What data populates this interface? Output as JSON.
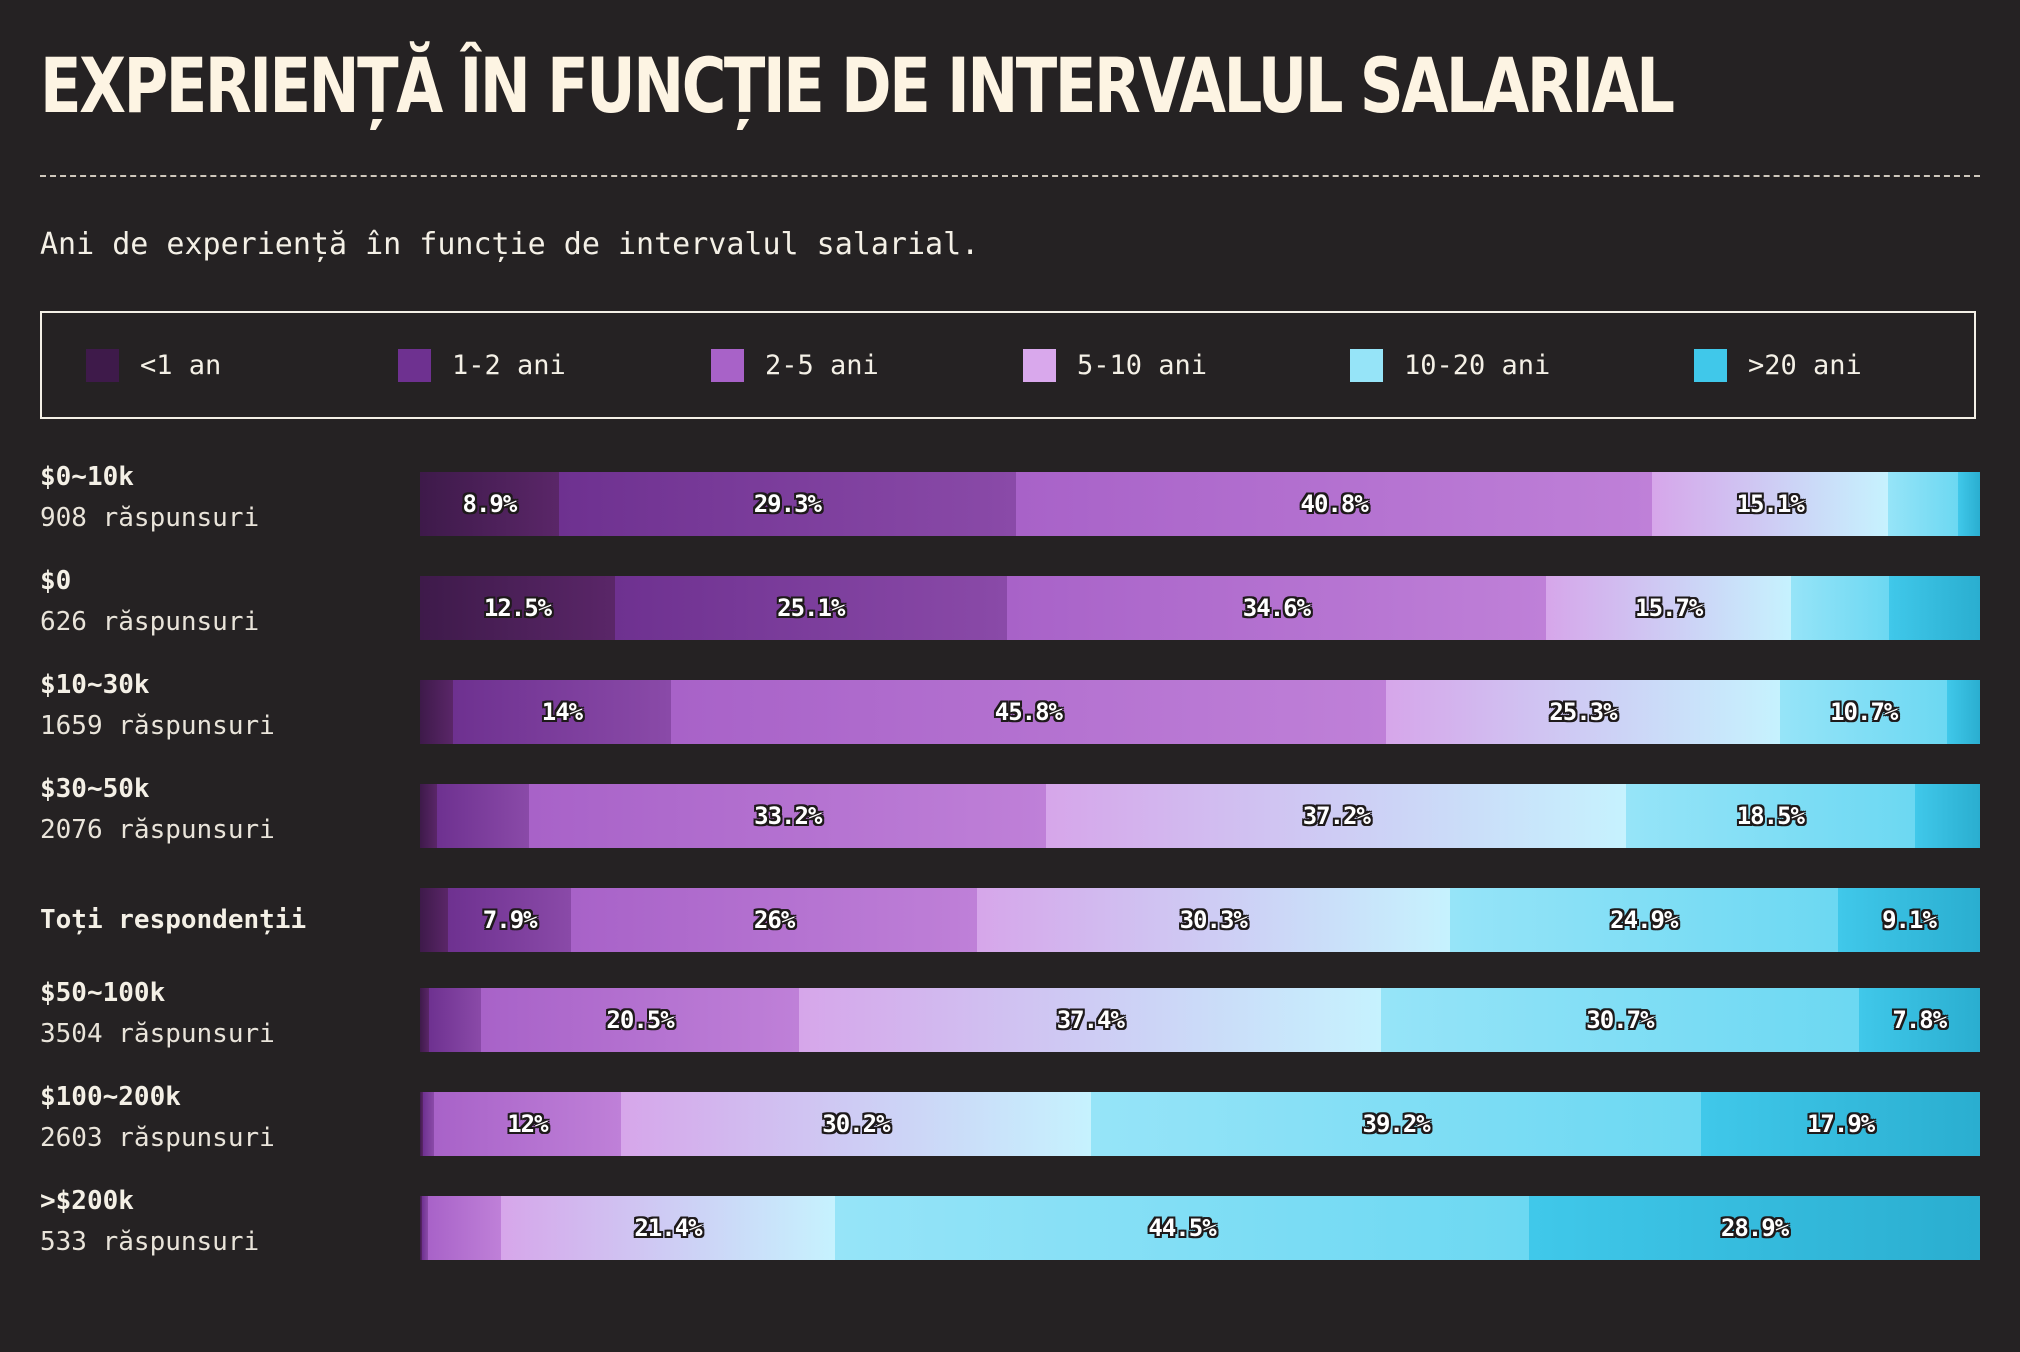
{
  "title": "EXPERIENȚĂ ÎN FUNCȚIE DE INTERVALUL SALARIAL",
  "subtitle": "Ani de experiență în funcție de intervalul salarial.",
  "legend": [
    {
      "label": "<1 an",
      "color": "#3e1a4a"
    },
    {
      "label": "1-2 ani",
      "color": "#6e3190"
    },
    {
      "label": "2-5 ani",
      "color": "#a862c8"
    },
    {
      "label": "5-10 ani",
      "color": "#d9a8ec"
    },
    {
      "label": "10-20 ani",
      "color": "#96e4f8"
    },
    {
      "label": ">20 ani",
      "color": "#40c8ea"
    }
  ],
  "gradients": [
    [
      "#3e1a4a",
      "#5a2668"
    ],
    [
      "#6e3190",
      "#8a4aa8"
    ],
    [
      "#a862c8",
      "#bf80d8"
    ],
    [
      "#d6a6ea",
      "#c6f2fe"
    ],
    [
      "#96e4f8",
      "#6cd8f2"
    ],
    [
      "#40c8ea",
      "#2aaed0"
    ]
  ],
  "chart_data": {
    "type": "bar",
    "orientation": "horizontal",
    "stacked": true,
    "normalized": true,
    "series_names": [
      "<1 an",
      "1-2 ani",
      "2-5 ani",
      "5-10 ani",
      "10-20 ani",
      ">20 ani"
    ],
    "rows": [
      {
        "label": "$0~10k",
        "count": "908 răspunsuri",
        "values": [
          8.9,
          29.3,
          40.8,
          15.1,
          4.5,
          1.4
        ],
        "labels": [
          "8.9%",
          "29.3%",
          "40.8%",
          "15.1%",
          "",
          ""
        ]
      },
      {
        "label": "$0",
        "count": "626 răspunsuri",
        "values": [
          12.5,
          25.1,
          34.6,
          15.7,
          6.3,
          5.8
        ],
        "labels": [
          "12.5%",
          "25.1%",
          "34.6%",
          "15.7%",
          "",
          ""
        ]
      },
      {
        "label": "$10~30k",
        "count": "1659 răspunsuri",
        "values": [
          2.1,
          14,
          45.8,
          25.3,
          10.7,
          2.1
        ],
        "labels": [
          "",
          "14%",
          "45.8%",
          "25.3%",
          "10.7%",
          ""
        ]
      },
      {
        "label": "$30~50k",
        "count": "2076 răspunsuri",
        "values": [
          1.1,
          5.9,
          33.2,
          37.2,
          18.5,
          4.2
        ],
        "labels": [
          "",
          "",
          "33.2%",
          "37.2%",
          "18.5%",
          ""
        ]
      },
      {
        "label": "Toți respondenții",
        "count": "",
        "values": [
          1.8,
          7.9,
          26,
          30.3,
          24.9,
          9.1
        ],
        "labels": [
          "",
          "7.9%",
          "26%",
          "30.3%",
          "24.9%",
          "9.1%"
        ]
      },
      {
        "label": "$50~100k",
        "count": "3504 răspunsuri",
        "values": [
          0.6,
          3.3,
          20.5,
          37.4,
          30.7,
          7.8
        ],
        "labels": [
          "",
          "",
          "20.5%",
          "37.4%",
          "30.7%",
          "7.8%"
        ]
      },
      {
        "label": "$100~200k",
        "count": "2603 răspunsuri",
        "values": [
          0.2,
          0.7,
          12,
          30.2,
          39.2,
          17.9
        ],
        "labels": [
          "",
          "",
          "12%",
          "30.2%",
          "39.2%",
          "17.9%"
        ]
      },
      {
        "label": ">$200k",
        "count": "533 răspunsuri",
        "values": [
          0.1,
          0.4,
          4.7,
          21.4,
          44.5,
          28.9
        ],
        "labels": [
          "",
          "",
          "",
          "21.4%",
          "44.5%",
          "28.9%"
        ]
      }
    ],
    "xlim": [
      0,
      100
    ]
  }
}
